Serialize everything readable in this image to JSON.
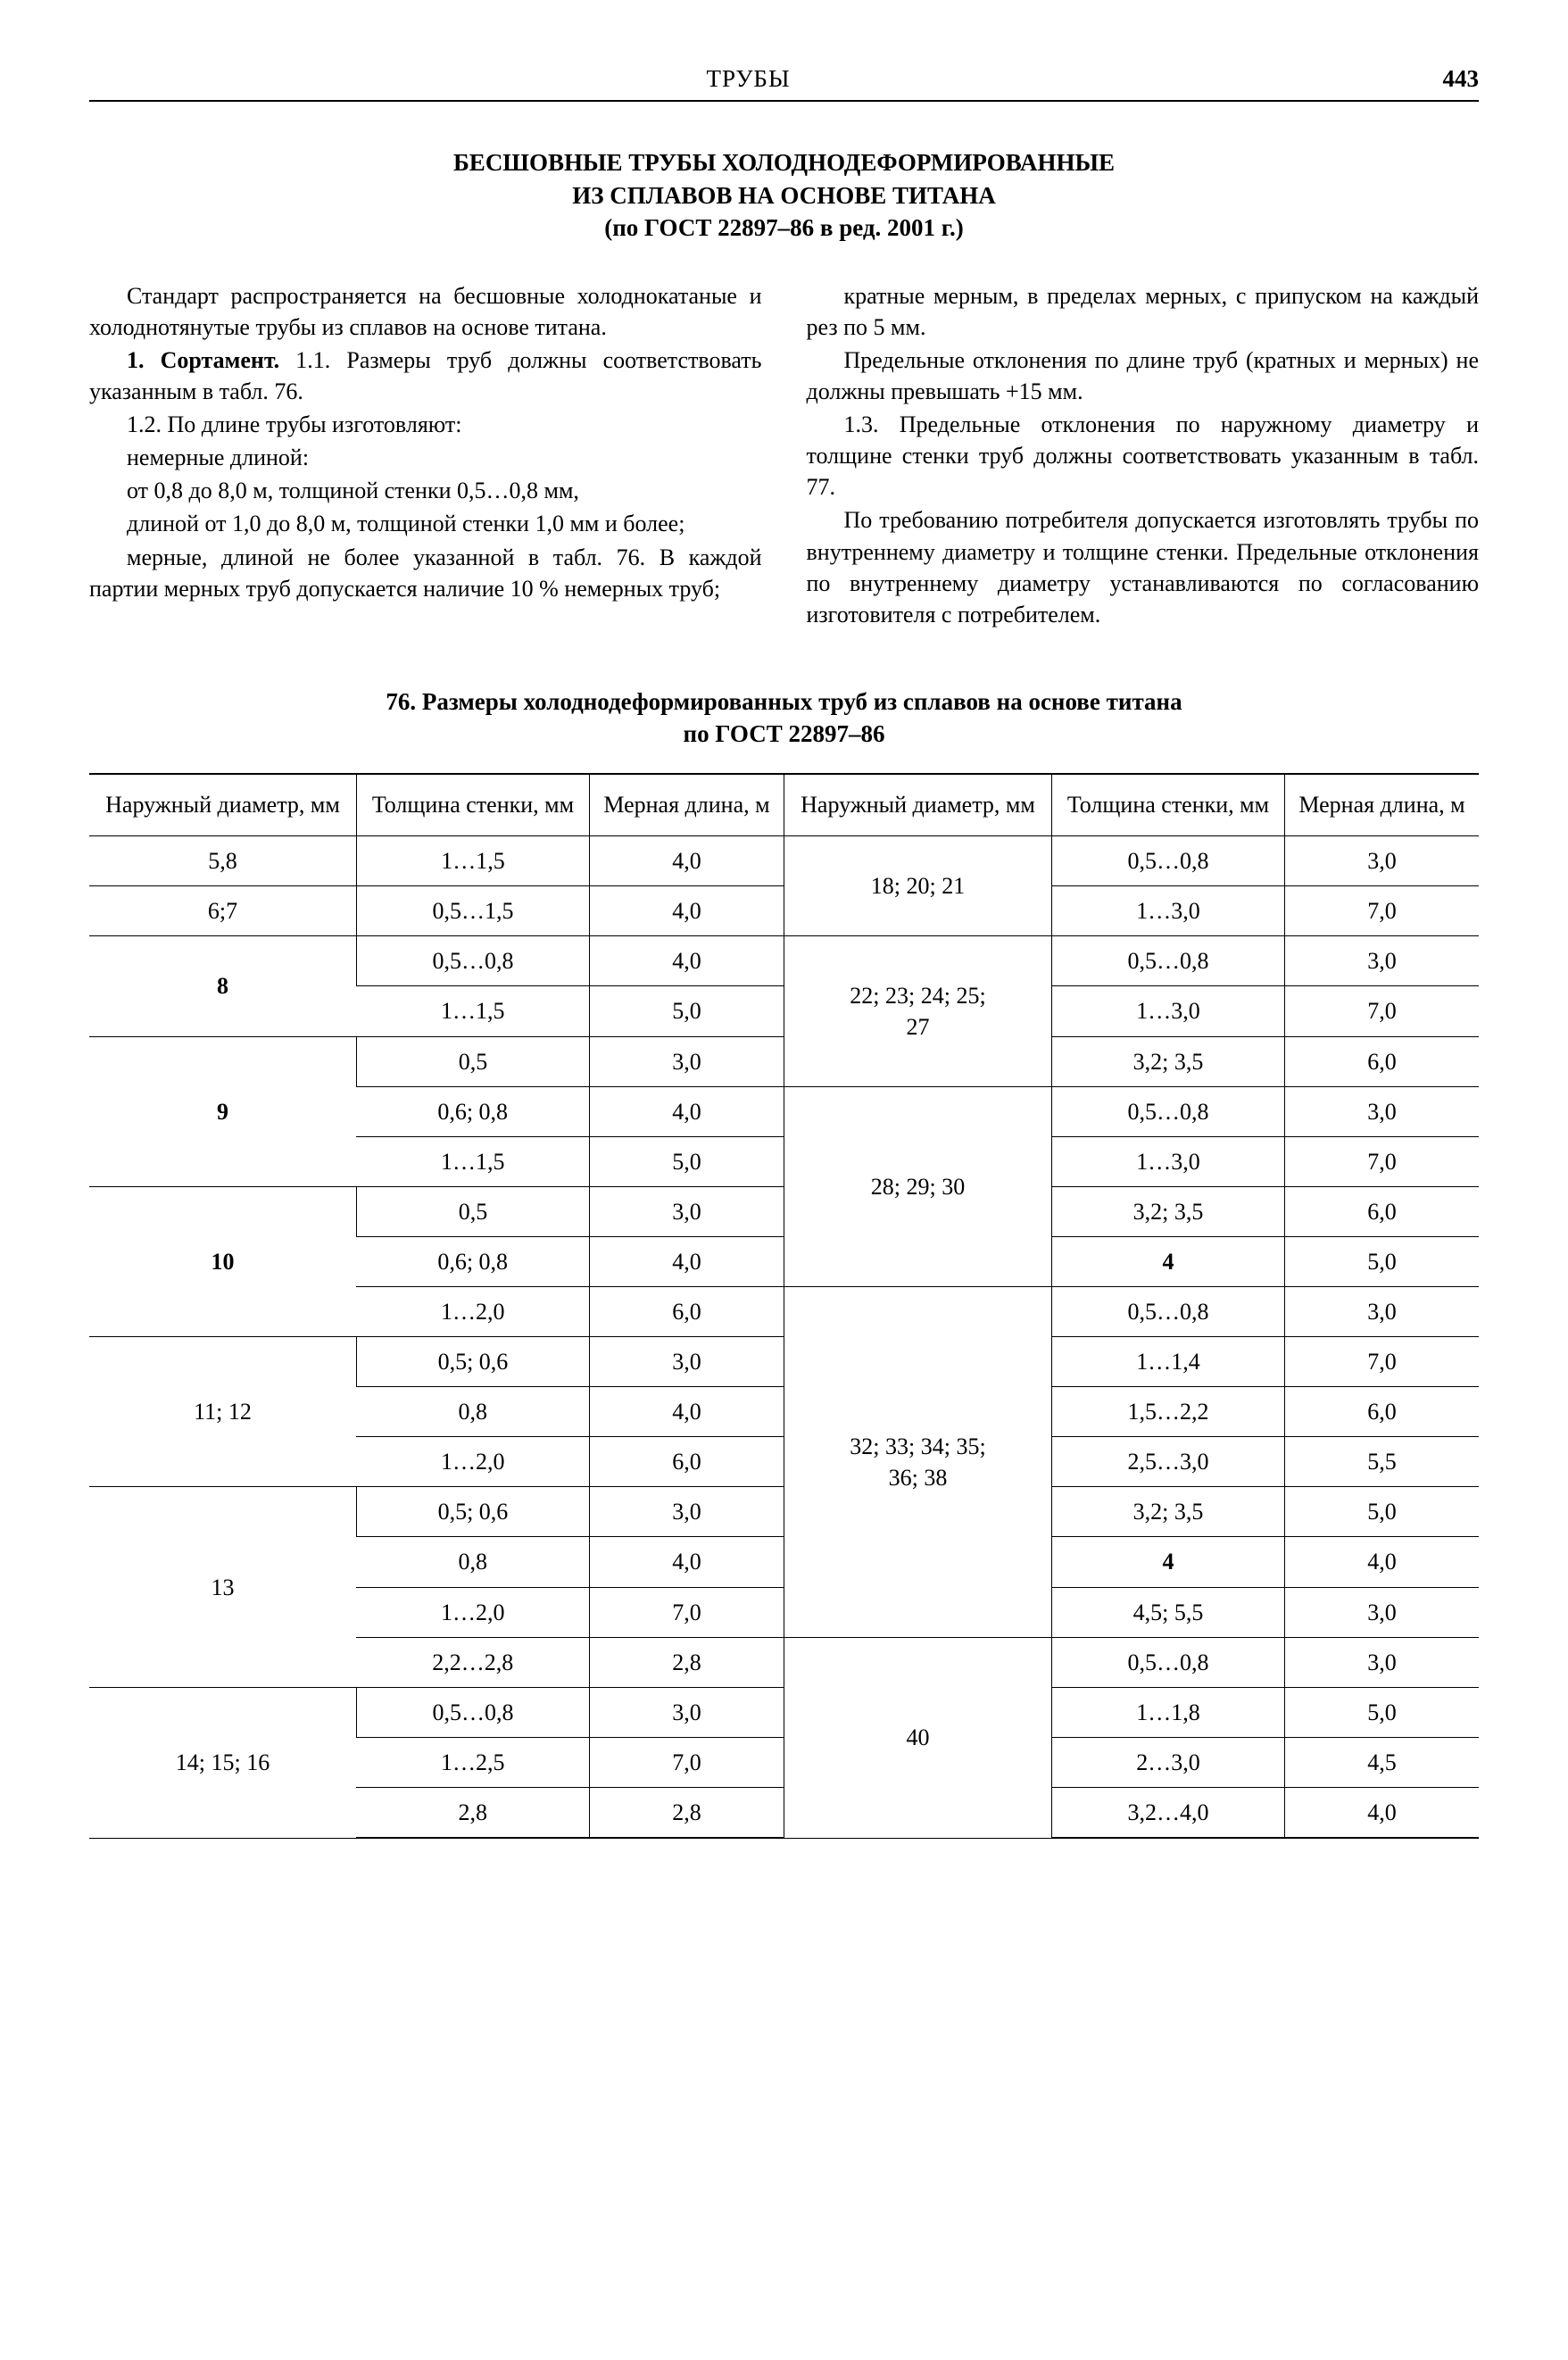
{
  "header": {
    "center": "ТРУБЫ",
    "page_number": "443"
  },
  "title": {
    "line1": "БЕСШОВНЫЕ ТРУБЫ ХОЛОДНОДЕФОРМИРОВАННЫЕ",
    "line2": "ИЗ СПЛАВОВ НА ОСНОВЕ ТИТАНА",
    "line3": "(по ГОСТ 22897–86 в ред. 2001 г.)"
  },
  "left_col": {
    "p1": "Стандарт распространяется на бесшовные холоднокатаные и холоднотянутые трубы из сплавов на основе титана.",
    "p2": "1. Сортамент. 1.1. Размеры труб должны соответствовать указанным в табл. 76.",
    "p3": "1.2. По длине трубы изготовляют:",
    "p4": "немерные длиной:",
    "p5": "от 0,8 до 8,0 м, толщиной стенки 0,5…0,8 мм,",
    "p6": "длиной от 1,0 до 8,0 м, толщиной стенки 1,0 мм и более;",
    "p7": "мерные, длиной не более указанной в табл. 76. В каждой партии мерных труб допускается наличие 10 % немерных труб;"
  },
  "right_col": {
    "p1": "кратные мерным, в пределах мерных, с припуском на каждый рез по 5 мм.",
    "p2": "Предельные отклонения по длине труб (кратных и мерных) не должны превышать +15 мм.",
    "p3": "1.3. Предельные отклонения по наружному диаметру и толщине стенки труб должны соответствовать указанным в табл. 77.",
    "p4": "По требованию потребителя допускается изготовлять трубы по внутреннему диаметру и толщине стенки. Предельные отклонения по внутреннему диаметру устанавливаются по согласованию изготовителя с потребителем."
  },
  "table_title": {
    "line1": "76. Размеры холоднодеформированных труб из сплавов на основе титана",
    "line2": "по ГОСТ 22897–86"
  },
  "table_headers": {
    "h1": "Наружный диаметр, мм",
    "h2": "Толщина стенки, мм",
    "h3": "Мерная длина, м"
  },
  "rows": [
    [
      "5,8",
      "1…1,5",
      "4,0",
      "18; 20; 21",
      "0,5…0,8",
      "3,0"
    ],
    [
      "6;7",
      "0,5…1,5",
      "4,0",
      null,
      "1…3,0",
      "7,0"
    ],
    [
      "8",
      "0,5…0,8",
      "4,0",
      "22; 23; 24; 25; 27",
      "0,5…0,8",
      "3,0"
    ],
    [
      null,
      "1…1,5",
      "5,0",
      null,
      "1…3,0",
      "7,0"
    ],
    [
      "9",
      "0,5",
      "3,0",
      null,
      "3,2; 3,5",
      "6,0"
    ],
    [
      null,
      "0,6; 0,8",
      "4,0",
      "28; 29; 30",
      "0,5…0,8",
      "3,0"
    ],
    [
      null,
      "1…1,5",
      "5,0",
      null,
      "1…3,0",
      "7,0"
    ],
    [
      "10",
      "0,5",
      "3,0",
      null,
      "3,2; 3,5",
      "6,0"
    ],
    [
      null,
      "0,6; 0,8",
      "4,0",
      null,
      "4",
      "5,0"
    ],
    [
      null,
      "1…2,0",
      "6,0",
      "32; 33; 34; 35; 36; 38",
      "0,5…0,8",
      "3,0"
    ],
    [
      "11; 12",
      "0,5; 0,6",
      "3,0",
      null,
      "1…1,4",
      "7,0"
    ],
    [
      null,
      "0,8",
      "4,0",
      null,
      "1,5…2,2",
      "6,0"
    ],
    [
      null,
      "1…2,0",
      "6,0",
      null,
      "2,5…3,0",
      "5,5"
    ],
    [
      "13",
      "0,5; 0,6",
      "3,0",
      null,
      "3,2; 3,5",
      "5,0"
    ],
    [
      null,
      "0,8",
      "4,0",
      null,
      "4",
      "4,0"
    ],
    [
      null,
      "1…2,0",
      "7,0",
      null,
      "4,5; 5,5",
      "3,0"
    ],
    [
      null,
      "2,2…2,8",
      "2,8",
      "40",
      "0,5…0,8",
      "3,0"
    ],
    [
      "14; 15; 16",
      "0,5…0,8",
      "3,0",
      null,
      "1…1,8",
      "5,0"
    ],
    [
      null,
      "1…2,5",
      "7,0",
      null,
      "2…3,0",
      "4,5"
    ],
    [
      null,
      "2,8",
      "2,8",
      null,
      "3,2…4,0",
      "4,0"
    ]
  ],
  "left_group_spans": {
    "0": 1,
    "1": 1,
    "2": 2,
    "4": 3,
    "7": 3,
    "10": 3,
    "13": 4,
    "17": 3
  },
  "right_group_spans": {
    "0": 2,
    "2": 3,
    "5": 4,
    "9": 7,
    "16": 4
  },
  "colors": {
    "text": "#000000",
    "background": "#ffffff",
    "rule": "#000000"
  },
  "fonts": {
    "family": "Times New Roman",
    "body_size_pt": 18,
    "title_size_pt": 18
  }
}
